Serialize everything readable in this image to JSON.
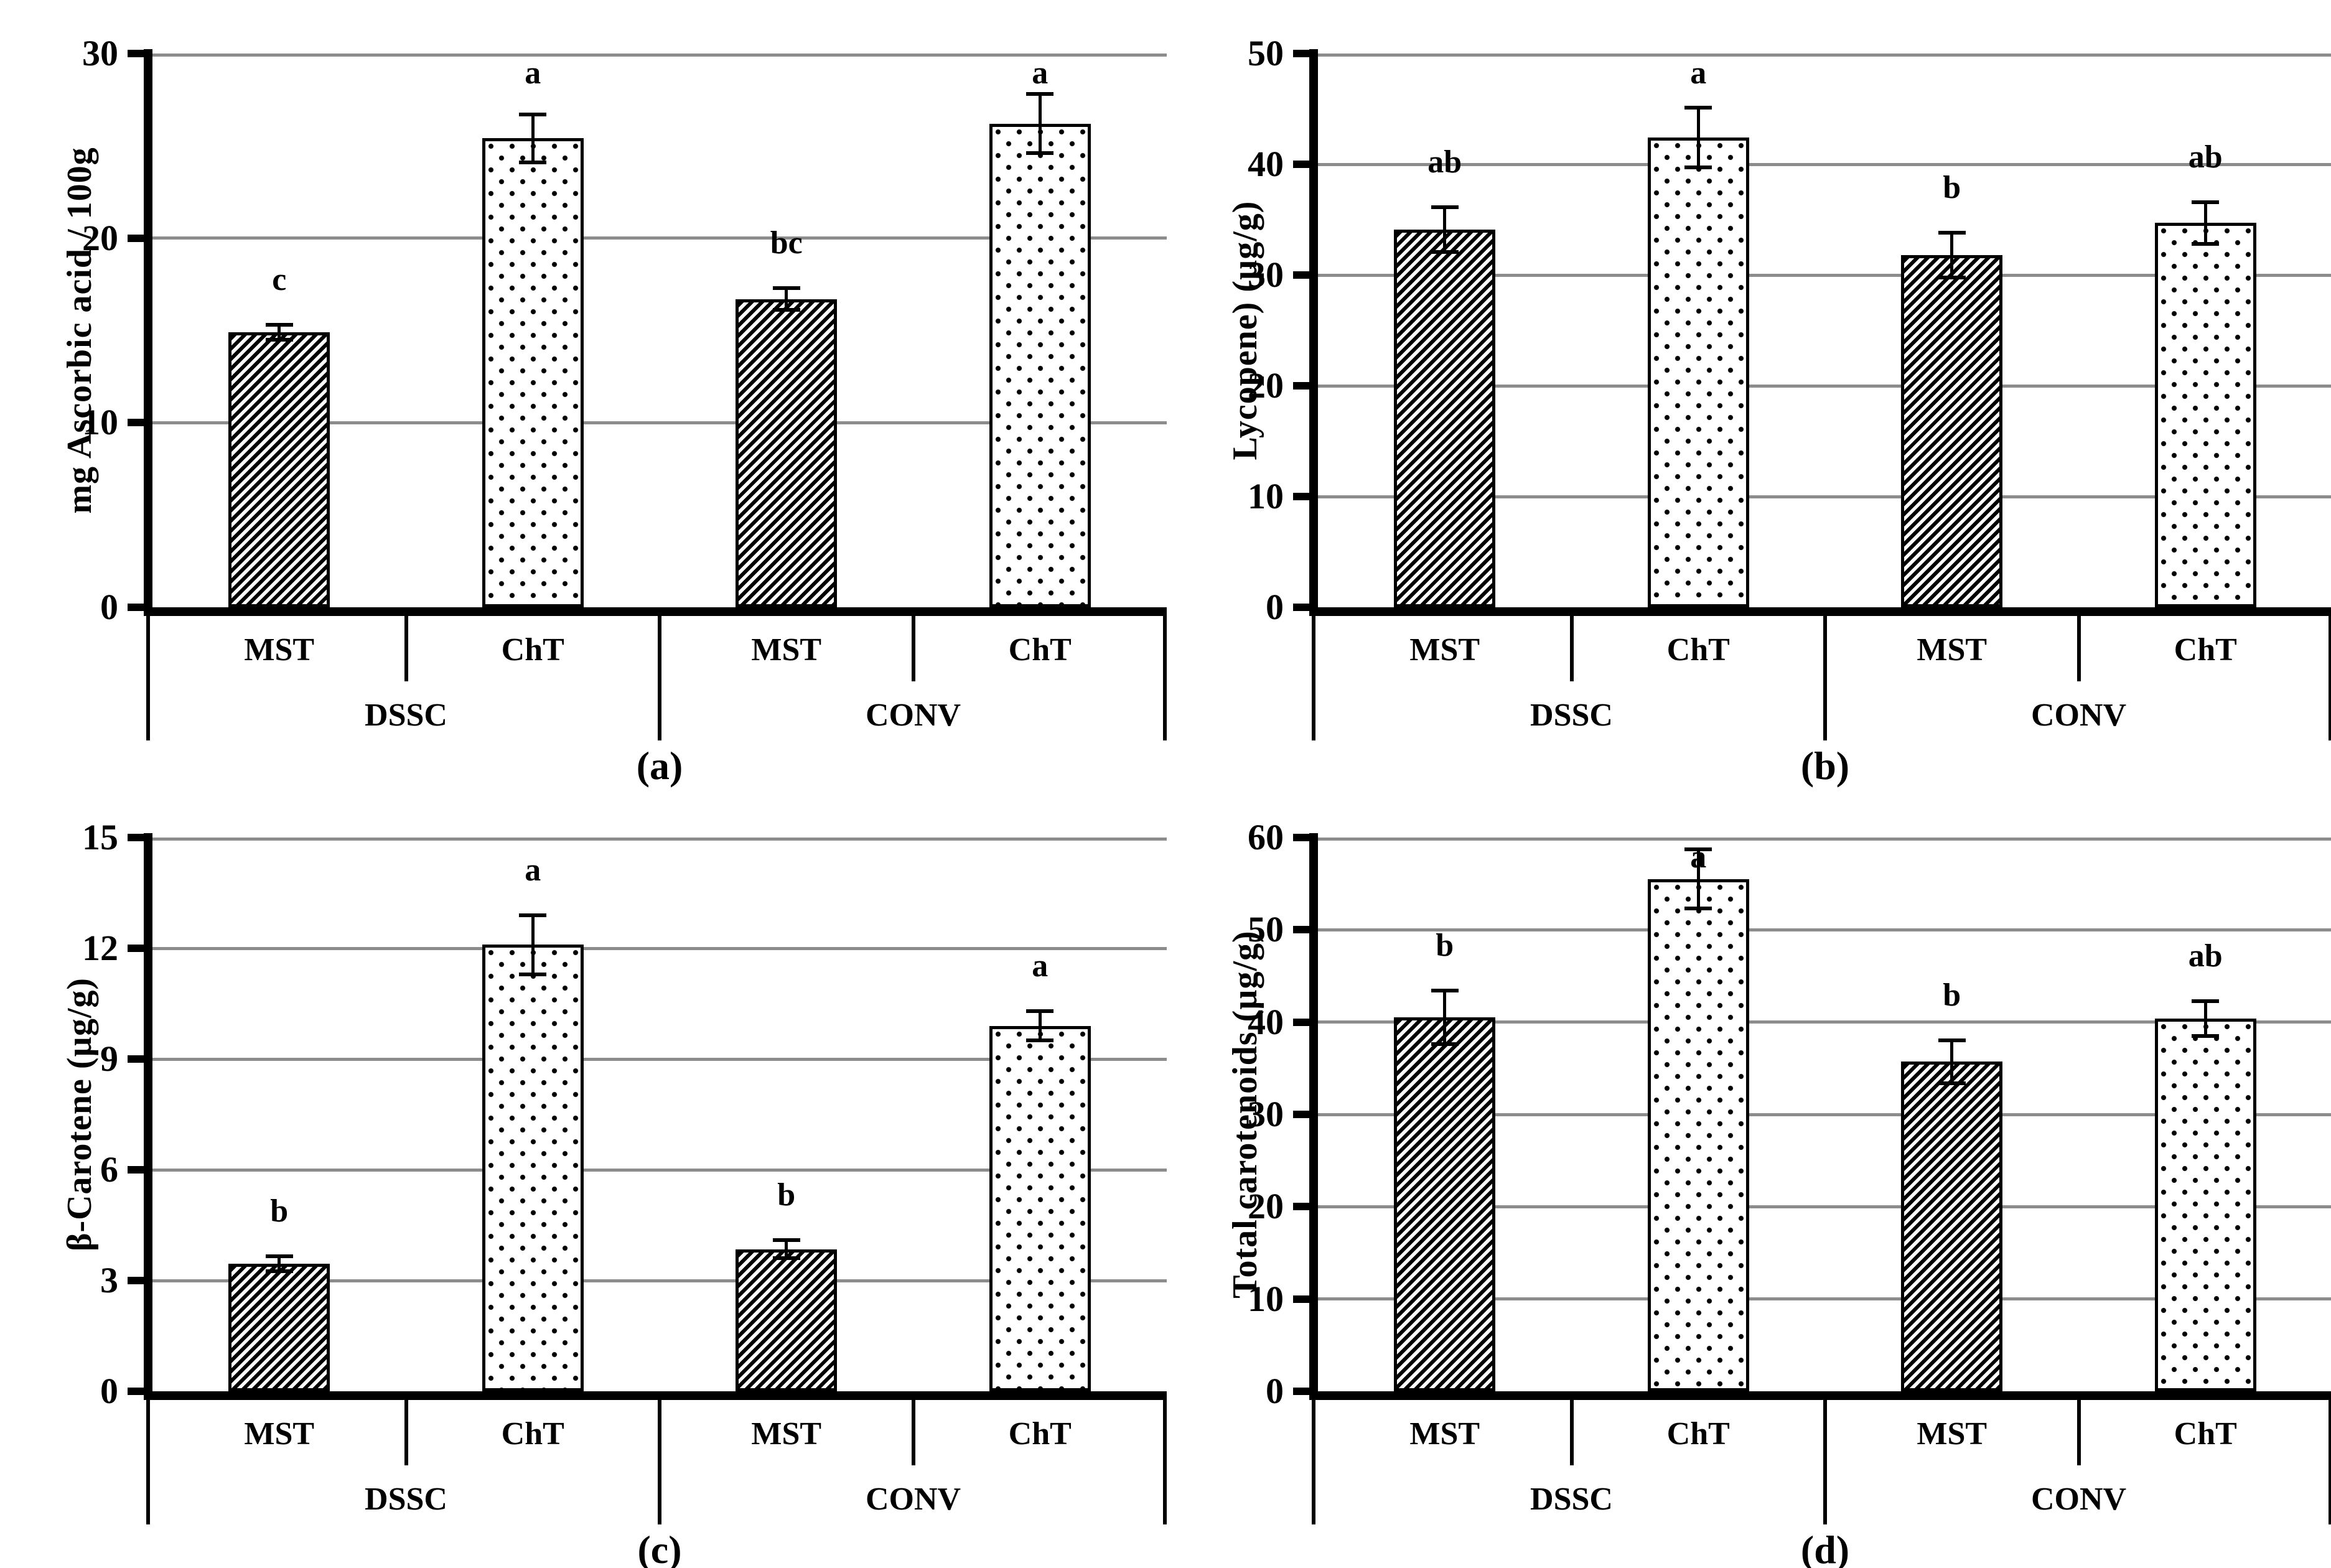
{
  "figure": {
    "background_color": "#ffffff",
    "text_color": "#000000",
    "gridline_color": "#8c8c8c",
    "pattern_legend": {
      "MST": "diagonal-hatch",
      "ChT": "dots"
    }
  },
  "chart_data": [
    {
      "panel": "a",
      "caption": "(a)",
      "type": "bar",
      "ylabel": "mg Ascorbic acid / 100g",
      "xlabel": "",
      "ylim": [
        0,
        30
      ],
      "yticks": [
        0,
        10,
        20,
        30
      ],
      "grid": true,
      "legend_position": "none",
      "groups": [
        {
          "label": "DSSC",
          "categories": [
            "MST",
            "ChT"
          ]
        },
        {
          "label": "CONV",
          "categories": [
            "MST",
            "ChT"
          ]
        }
      ],
      "categories": [
        "MST",
        "ChT",
        "MST",
        "ChT"
      ],
      "values": [
        14.9,
        25.4,
        16.7,
        26.2
      ],
      "errors": [
        0.4,
        1.3,
        0.6,
        1.6
      ],
      "sig_letters": [
        "c",
        "a",
        "bc",
        "a"
      ],
      "bar_patterns": [
        "diagonal-hatch",
        "dots",
        "diagonal-hatch",
        "dots"
      ]
    },
    {
      "panel": "b",
      "caption": "(b)",
      "type": "bar",
      "ylabel": "Lycopene) (µg/g)",
      "xlabel": "",
      "ylim": [
        0,
        50
      ],
      "yticks": [
        0,
        10,
        20,
        30,
        40,
        50
      ],
      "grid": true,
      "legend_position": "none",
      "groups": [
        {
          "label": "DSSC",
          "categories": [
            "MST",
            "ChT"
          ]
        },
        {
          "label": "CONV",
          "categories": [
            "MST",
            "ChT"
          ]
        }
      ],
      "categories": [
        "MST",
        "ChT",
        "MST",
        "ChT"
      ],
      "values": [
        34.1,
        42.4,
        31.8,
        34.7
      ],
      "errors": [
        2.0,
        2.7,
        2.0,
        1.9
      ],
      "sig_letters": [
        "ab",
        "a",
        "b",
        "ab"
      ],
      "bar_patterns": [
        "diagonal-hatch",
        "dots",
        "diagonal-hatch",
        "dots"
      ]
    },
    {
      "panel": "c",
      "caption": "(c)",
      "type": "bar",
      "ylabel": "β-Carotene (µg/g)",
      "xlabel": "",
      "ylim": [
        0,
        15
      ],
      "yticks": [
        0,
        3,
        6,
        9,
        12,
        15
      ],
      "grid": true,
      "legend_position": "none",
      "groups": [
        {
          "label": "DSSC",
          "categories": [
            "MST",
            "ChT"
          ]
        },
        {
          "label": "CONV",
          "categories": [
            "MST",
            "ChT"
          ]
        }
      ],
      "categories": [
        "MST",
        "ChT",
        "MST",
        "ChT"
      ],
      "values": [
        3.45,
        12.1,
        3.85,
        9.9
      ],
      "errors": [
        0.2,
        0.8,
        0.25,
        0.4
      ],
      "sig_letters": [
        "b",
        "a",
        "b",
        "a"
      ],
      "bar_patterns": [
        "diagonal-hatch",
        "dots",
        "diagonal-hatch",
        "dots"
      ]
    },
    {
      "panel": "d",
      "caption": "(d)",
      "type": "bar",
      "ylabel": "Total carotenoids (µg/g)",
      "xlabel": "",
      "ylim": [
        0,
        60
      ],
      "yticks": [
        0,
        10,
        20,
        30,
        40,
        50,
        60
      ],
      "grid": true,
      "legend_position": "none",
      "groups": [
        {
          "label": "DSSC",
          "categories": [
            "MST",
            "ChT"
          ]
        },
        {
          "label": "CONV",
          "categories": [
            "MST",
            "ChT"
          ]
        }
      ],
      "categories": [
        "MST",
        "ChT",
        "MST",
        "ChT"
      ],
      "values": [
        40.5,
        55.5,
        35.7,
        40.4
      ],
      "errors": [
        2.9,
        3.2,
        2.3,
        1.9
      ],
      "sig_letters": [
        "b",
        "a",
        "b",
        "ab"
      ],
      "bar_patterns": [
        "diagonal-hatch",
        "dots",
        "diagonal-hatch",
        "dots"
      ]
    }
  ]
}
